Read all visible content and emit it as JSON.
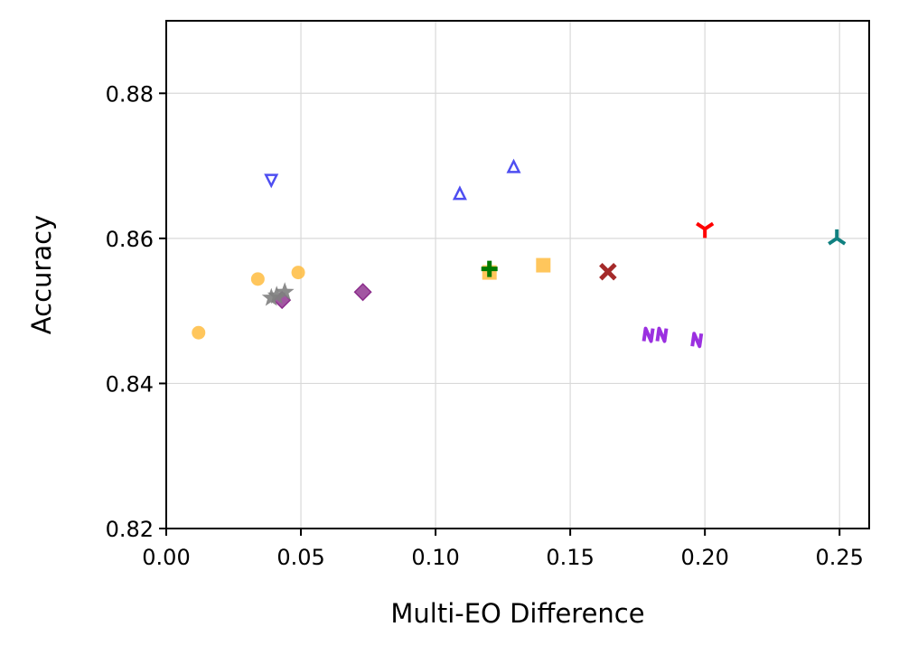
{
  "chart_data": {
    "type": "scatter",
    "title": "",
    "xlabel": "Multi-EO Difference",
    "ylabel": "Accuracy",
    "xlim": [
      0.0,
      0.261
    ],
    "ylim": [
      0.82,
      0.89
    ],
    "xticks": [
      0.0,
      0.05,
      0.1,
      0.15,
      0.2,
      0.25
    ],
    "xtick_labels": [
      "0.00",
      "0.05",
      "0.10",
      "0.15",
      "0.20",
      "0.25"
    ],
    "yticks": [
      0.82,
      0.84,
      0.86,
      0.88
    ],
    "ytick_labels": [
      "0.82",
      "0.84",
      "0.86",
      "0.88"
    ],
    "grid": true,
    "series": [
      {
        "name": "orange-circles",
        "marker": "circle",
        "color": "#FFB833",
        "points": [
          [
            0.012,
            0.847
          ],
          [
            0.034,
            0.8544
          ],
          [
            0.049,
            0.8553
          ]
        ]
      },
      {
        "name": "orange-squares",
        "marker": "square",
        "color": "#FFB833",
        "points": [
          [
            0.12,
            0.8553
          ],
          [
            0.14,
            0.8563
          ]
        ]
      },
      {
        "name": "blue-triangle-down",
        "marker": "triangle-down",
        "color": "#2222EE",
        "points": [
          [
            0.039,
            0.868
          ]
        ]
      },
      {
        "name": "blue-triangle-up",
        "marker": "triangle-up",
        "color": "#2222EE",
        "points": [
          [
            0.109,
            0.8662
          ],
          [
            0.129,
            0.8699
          ]
        ]
      },
      {
        "name": "purple-diamonds",
        "marker": "diamond",
        "color": "#8B2C8B",
        "points": [
          [
            0.043,
            0.8515
          ],
          [
            0.073,
            0.8526
          ]
        ]
      },
      {
        "name": "gray-stars",
        "marker": "star",
        "color": "#808080",
        "points": [
          [
            0.039,
            0.8518
          ],
          [
            0.041,
            0.8521
          ],
          [
            0.044,
            0.8526
          ]
        ]
      },
      {
        "name": "green-plus",
        "marker": "plus",
        "color": "#007A00",
        "points": [
          [
            0.12,
            0.8558
          ]
        ]
      },
      {
        "name": "brown-x",
        "marker": "x",
        "color": "#A52A2A",
        "points": [
          [
            0.164,
            0.8554
          ]
        ]
      },
      {
        "name": "violet-n",
        "marker": "n",
        "color": "#9B30E0",
        "points": [
          [
            0.179,
            0.8467
          ],
          [
            0.184,
            0.8467
          ],
          [
            0.197,
            0.846
          ]
        ]
      },
      {
        "name": "red-tri-down",
        "marker": "tri-down",
        "color": "#FF0000",
        "points": [
          [
            0.2,
            0.8613
          ]
        ]
      },
      {
        "name": "teal-tri-up",
        "marker": "tri-up",
        "color": "#108080",
        "points": [
          [
            0.249,
            0.86
          ]
        ]
      }
    ]
  }
}
